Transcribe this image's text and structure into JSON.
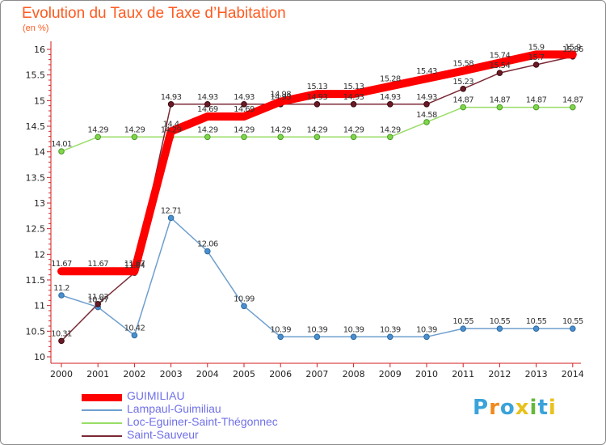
{
  "chart_data": {
    "type": "line",
    "title": "Evolution du Taux de Taxe d’Habitation",
    "unit_label": "(en %)",
    "x": [
      "2000",
      "2001",
      "2002",
      "2003",
      "2004",
      "2005",
      "2006",
      "2007",
      "2008",
      "2009",
      "2010",
      "2011",
      "2012",
      "2013",
      "2014"
    ],
    "yticks": [
      "10",
      "10.5",
      "11",
      "11.5",
      "12",
      "12.5",
      "13",
      "13.5",
      "14",
      "14.5",
      "15",
      "15.5",
      "16"
    ],
    "ylim": [
      10,
      16
    ],
    "grid": false,
    "legend_position": "bottom-left",
    "series": [
      {
        "name": "GUIMILIAU",
        "color": "#ff0000",
        "values": [
          11.67,
          11.67,
          11.67,
          14.4,
          14.69,
          14.69,
          14.98,
          15.13,
          15.13,
          15.28,
          15.43,
          15.58,
          15.74,
          15.9,
          15.9
        ],
        "labels": [
          "11.67",
          "11.67",
          "11.67",
          "14.4",
          "14.69",
          "14.69",
          "14.98",
          "15.13",
          "15.13",
          "15.28",
          "15.43",
          "15.58",
          "15.74",
          "15.9",
          "15.9"
        ]
      },
      {
        "name": "Lampaul-Guimiliau",
        "color": "#6f9fcf",
        "values": [
          11.2,
          10.97,
          10.42,
          12.71,
          12.06,
          10.99,
          10.39,
          10.39,
          10.39,
          10.39,
          10.39,
          10.55,
          10.55,
          10.55,
          10.55
        ],
        "labels": [
          "11.2",
          "10.97",
          "10.42",
          "12.71",
          "12.06",
          "10.99",
          "10.39",
          "10.39",
          "10.39",
          "10.39",
          "10.39",
          "10.55",
          "10.55",
          "10.55",
          "10.55"
        ]
      },
      {
        "name": "Loc-Eguiner-Saint-Thégonnec",
        "color": "#99dd66",
        "values": [
          14.01,
          14.29,
          14.29,
          14.29,
          14.29,
          14.29,
          14.29,
          14.29,
          14.29,
          14.29,
          14.58,
          14.87,
          14.87,
          14.87,
          14.87
        ],
        "labels": [
          "14.01",
          "14.29",
          "14.29",
          "14.29",
          "14.29",
          "14.29",
          "14.29",
          "14.29",
          "14.29",
          "14.29",
          "14.58",
          "14.87",
          "14.87",
          "14.87",
          "14.87"
        ]
      },
      {
        "name": "Saint-Sauveur",
        "color": "#7a2a35",
        "values": [
          10.31,
          11.03,
          11.64,
          14.93,
          14.93,
          14.93,
          14.93,
          14.93,
          14.93,
          14.93,
          14.93,
          15.23,
          15.54,
          15.7,
          15.86
        ],
        "labels": [
          "10.31",
          "11.03",
          "11.64",
          "14.93",
          "14.93",
          "14.93",
          "14.93",
          "14.93",
          "14.93",
          "14.93",
          "14.93",
          "15.23",
          "15.54",
          "15.7",
          "15.86"
        ]
      }
    ]
  },
  "logo": {
    "letters": [
      "P",
      "r",
      "o",
      "x",
      "i",
      "t",
      "i"
    ],
    "colors": [
      "#3aa3d9",
      "#f08a1c",
      "#3aa3d9",
      "#e8c21c",
      "#66b83a",
      "#3aa3d9",
      "#e8c21c"
    ]
  }
}
